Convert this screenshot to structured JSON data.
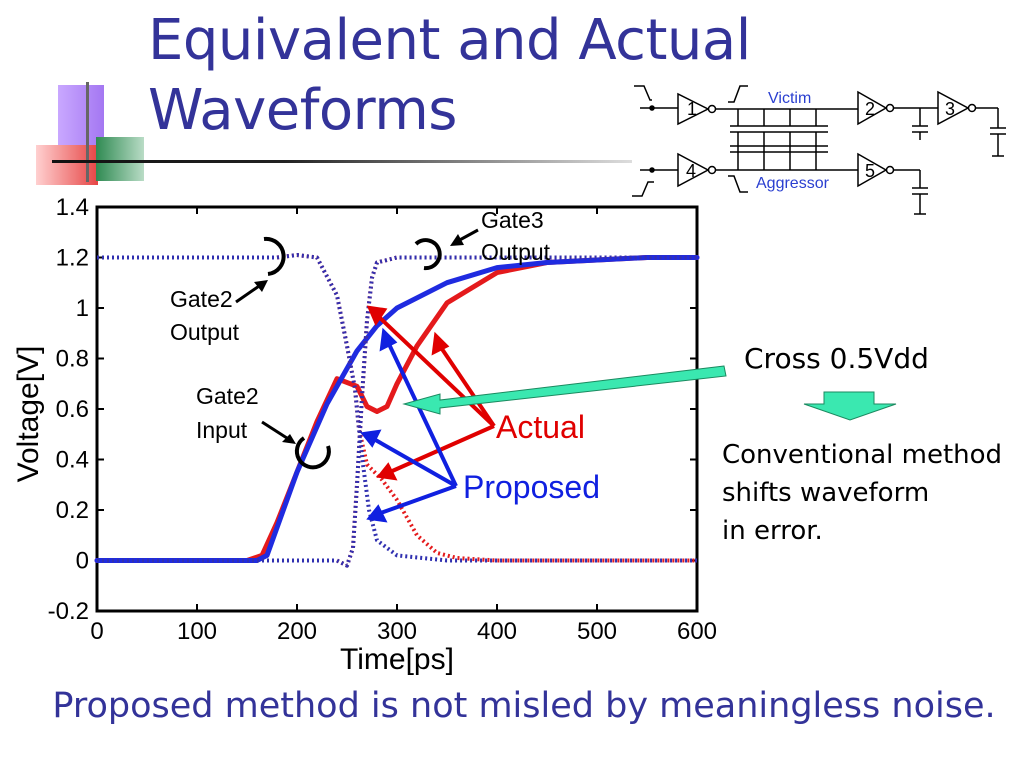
{
  "slide": {
    "title_line1": "Equivalent and Actual",
    "title_line2": "Waveforms",
    "bottom_text": "Proposed method is not misled by meaningless noise.",
    "cross_label": "Cross 0.5Vdd",
    "conv_line1": "Conventional method",
    "conv_line2": "shifts waveform",
    "conv_line3": "in error."
  },
  "circuit": {
    "gates": [
      "1",
      "2",
      "3",
      "4",
      "5"
    ],
    "victim_label": "Victim",
    "aggressor_label": "Aggressor"
  },
  "chart_data": {
    "type": "line",
    "xlabel": "Time[ps]",
    "ylabel": "Voltage[V]",
    "xlim": [
      0,
      600
    ],
    "ylim": [
      -0.2,
      1.4
    ],
    "xticks": [
      "0",
      "100",
      "200",
      "300",
      "400",
      "500",
      "600"
    ],
    "yticks": [
      "-0.2",
      "0",
      "0.2",
      "0.4",
      "0.6",
      "0.8",
      "1",
      "1.2",
      "1.4"
    ],
    "grid": false,
    "legend": {
      "actual": "Actual",
      "proposed": "Proposed"
    },
    "annotations": {
      "gate2_output_1": "Gate2",
      "gate2_output_2": "Output",
      "gate2_input_1": "Gate2",
      "gate2_input_2": "Input",
      "gate3_output_1": "Gate3",
      "gate3_output_2": "Output"
    },
    "series": [
      {
        "name": "Actual",
        "color": "#e41a1c",
        "style": "solid",
        "x": [
          0,
          150,
          165,
          180,
          200,
          220,
          240,
          260,
          270,
          280,
          290,
          300,
          320,
          350,
          400,
          450,
          500,
          550,
          600
        ],
        "y": [
          0,
          0,
          0.02,
          0.15,
          0.35,
          0.55,
          0.72,
          0.69,
          0.61,
          0.59,
          0.61,
          0.7,
          0.85,
          1.02,
          1.14,
          1.18,
          1.19,
          1.2,
          1.2
        ]
      },
      {
        "name": "Proposed",
        "color": "#1f2be0",
        "style": "solid",
        "x": [
          0,
          160,
          170,
          200,
          230,
          260,
          280,
          300,
          350,
          400,
          450,
          500,
          550,
          600
        ],
        "y": [
          0,
          0,
          0.02,
          0.35,
          0.62,
          0.83,
          0.93,
          1.0,
          1.1,
          1.16,
          1.18,
          1.19,
          1.2,
          1.2
        ]
      },
      {
        "name": "",
        "color": "#e41a1c",
        "style": "dotted",
        "x": [
          0,
          150,
          180,
          200,
          220,
          240,
          250,
          258,
          262,
          270,
          285,
          300,
          320,
          340,
          360,
          400,
          450,
          600
        ],
        "y": [
          1.2,
          1.2,
          1.2,
          1.21,
          1.2,
          1.05,
          0.85,
          0.68,
          0.52,
          0.38,
          0.32,
          0.24,
          0.1,
          0.03,
          0.01,
          0,
          0,
          0
        ]
      },
      {
        "name": "",
        "color": "#3030b0",
        "style": "dotted",
        "x": [
          0,
          150,
          180,
          200,
          220,
          240,
          250,
          258,
          262,
          266,
          272,
          280,
          300,
          350,
          600
        ],
        "y": [
          1.2,
          1.2,
          1.2,
          1.21,
          1.2,
          1.05,
          0.85,
          0.68,
          0.52,
          0.38,
          0.2,
          0.08,
          0.02,
          0,
          0
        ]
      },
      {
        "name": "",
        "color": "#e41a1c",
        "style": "dotted",
        "x": [
          0,
          220,
          240,
          250,
          256,
          260,
          265,
          270,
          275,
          280,
          300,
          320,
          350,
          400,
          450,
          500,
          600
        ],
        "y": [
          0,
          0,
          0,
          -0.02,
          0.05,
          0.3,
          0.65,
          0.95,
          1.12,
          1.18,
          1.2,
          1.2,
          1.2,
          1.2,
          1.2,
          1.2,
          1.2
        ]
      },
      {
        "name": "",
        "color": "#3030b0",
        "style": "dotted",
        "x": [
          0,
          220,
          240,
          250,
          256,
          260,
          265,
          270,
          275,
          280,
          300,
          320,
          350,
          400,
          450,
          500,
          600
        ],
        "y": [
          0,
          0,
          0,
          -0.02,
          0.05,
          0.3,
          0.65,
          0.95,
          1.12,
          1.18,
          1.2,
          1.2,
          1.2,
          1.2,
          1.2,
          1.2,
          1.2
        ]
      }
    ]
  }
}
